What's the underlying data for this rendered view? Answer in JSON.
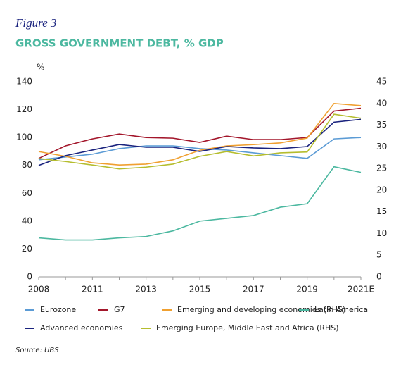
{
  "chart_data": {
    "type": "line",
    "figure_label": "Figure 3",
    "title": "GROSS GOVERNMENT DEBT, % GDP",
    "y_label": "%",
    "source": "Source: UBS",
    "categories": [
      "2008",
      null,
      "2011",
      null,
      "2013",
      null,
      "2015",
      null,
      "2017",
      null,
      "2019",
      null,
      "2021E"
    ],
    "ylim": [
      0,
      140
    ],
    "yticks": [
      0,
      20,
      40,
      60,
      80,
      100,
      120,
      140
    ],
    "y2lim": [
      0,
      45
    ],
    "y2ticks": [
      0,
      5,
      10,
      15,
      20,
      25,
      30,
      35,
      40,
      45
    ],
    "grid": false,
    "series": [
      {
        "name": "Eurozone",
        "color": "#5b9bd5",
        "values": [
          84,
          86,
          88,
          92,
          94,
          94,
          92,
          91,
          89,
          87,
          85,
          99,
          100
        ]
      },
      {
        "name": "G7",
        "color": "#a3162b",
        "values": [
          85,
          94,
          99,
          102.5,
          100,
          99.5,
          96.5,
          101,
          98.5,
          98.5,
          100,
          119,
          121
        ]
      },
      {
        "name": "Emerging and developing economies (RHS)",
        "color": "#f0a030",
        "axis": "y2",
        "values": [
          28.9,
          27.8,
          26.3,
          25.8,
          26,
          27,
          29.2,
          30.2,
          30.5,
          30.9,
          32,
          40,
          39.5
        ]
      },
      {
        "name": "Latin America",
        "color": "#4cb8a0",
        "values": [
          28,
          26.5,
          26.5,
          28,
          29,
          33,
          40,
          42,
          44,
          50,
          52.5,
          79,
          75
        ]
      },
      {
        "name": "Advanced economies",
        "color": "#1a237e",
        "values": [
          80,
          87,
          91,
          95,
          93,
          93,
          90,
          93.5,
          92.5,
          92,
          93.5,
          111,
          113
        ]
      },
      {
        "name": "Emerging Europe, Middle East and Africa (RHS)",
        "color": "#b5bd2e",
        "axis": "y2",
        "values": [
          27.3,
          26.6,
          25.8,
          24.9,
          25.3,
          26,
          27.8,
          28.9,
          27.9,
          28.6,
          28.8,
          37.5,
          36.6
        ]
      }
    ]
  }
}
